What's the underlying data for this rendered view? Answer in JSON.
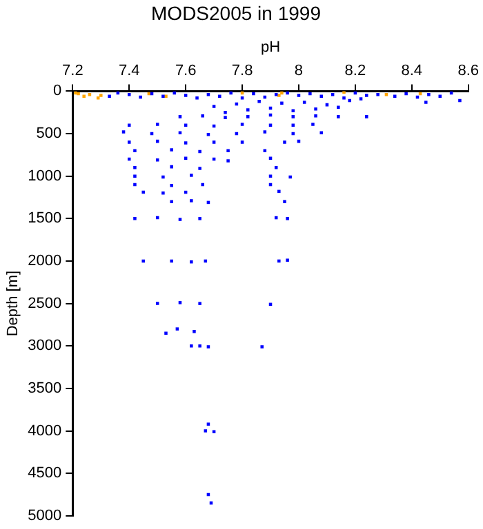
{
  "chart_data": {
    "type": "scatter",
    "title": "MODS2005 in 1999",
    "xlabel": "pH",
    "ylabel": "Depth [m]",
    "xlim": [
      7.2,
      8.6
    ],
    "xticks": [
      7.2,
      7.4,
      7.6,
      7.8,
      8,
      8.2,
      8.4,
      8.6
    ],
    "ylim": [
      5000,
      0
    ],
    "yticks": [
      0,
      500,
      1000,
      1500,
      2000,
      2500,
      3000,
      3500,
      4000,
      4500,
      5000
    ],
    "grid": false,
    "legend": false,
    "marker": "square",
    "series": [
      {
        "color": "#0000ff",
        "x": [
          7.33,
          7.36,
          7.4,
          7.44,
          7.48,
          7.52,
          7.56,
          7.6,
          7.64,
          7.68,
          7.72,
          7.76,
          7.8,
          7.84,
          7.88,
          7.92,
          7.96,
          8,
          8.04,
          8.08,
          8.12,
          8.16,
          8.2,
          8.24,
          8.28,
          8.34,
          8.38,
          8.42,
          8.46,
          8.5,
          8.54,
          8.57,
          7.7,
          7.78,
          7.86,
          7.94,
          8.02,
          8.1,
          8.18,
          8.22,
          7.74,
          7.82,
          7.9,
          7.98,
          8.06,
          8.14,
          8.45,
          7.58,
          7.66,
          7.74,
          7.82,
          7.9,
          7.98,
          8.06,
          8.14,
          8.24,
          7.4,
          7.5,
          7.6,
          7.7,
          7.8,
          7.9,
          7.98,
          8.05,
          7.38,
          7.48,
          7.58,
          7.68,
          7.78,
          7.88,
          7.98,
          8.08,
          7.4,
          7.5,
          7.6,
          7.7,
          7.8,
          7.95,
          8,
          7.42,
          7.55,
          7.65,
          7.75,
          7.88,
          7.4,
          7.5,
          7.6,
          7.7,
          7.75,
          7.9,
          7.42,
          7.55,
          7.65,
          7.92,
          7.42,
          7.52,
          7.62,
          7.9,
          7.97,
          7.42,
          7.55,
          7.66,
          7.9,
          7.45,
          7.52,
          7.6,
          7.93,
          7.55,
          7.62,
          7.68,
          7.95,
          7.42,
          7.5,
          7.58,
          7.65,
          7.92,
          7.96,
          7.45,
          7.55,
          7.62,
          7.67,
          7.93,
          7.96,
          7.5,
          7.58,
          7.65,
          7.9,
          7.53,
          7.57,
          7.63,
          7.62,
          7.65,
          7.68,
          7.87,
          7.68,
          7.67,
          7.7,
          7.68,
          7.69
        ],
        "values": [
          60,
          20,
          40,
          70,
          30,
          60,
          20,
          50,
          80,
          40,
          60,
          20,
          80,
          30,
          70,
          40,
          20,
          50,
          30,
          60,
          40,
          80,
          20,
          50,
          40,
          60,
          30,
          70,
          40,
          60,
          20,
          110,
          180,
          150,
          120,
          140,
          130,
          160,
          110,
          90,
          250,
          220,
          200,
          230,
          210,
          190,
          130,
          300,
          290,
          310,
          300,
          280,
          300,
          290,
          300,
          300,
          400,
          390,
          400,
          410,
          390,
          400,
          400,
          390,
          480,
          500,
          490,
          510,
          500,
          480,
          500,
          490,
          600,
          590,
          610,
          600,
          600,
          600,
          590,
          700,
          690,
          710,
          700,
          700,
          800,
          810,
          790,
          800,
          820,
          790,
          900,
          890,
          910,
          900,
          1000,
          1010,
          990,
          1000,
          1010,
          1100,
          1110,
          1100,
          1100,
          1190,
          1200,
          1190,
          1180,
          1300,
          1290,
          1310,
          1300,
          1500,
          1490,
          1510,
          1500,
          1490,
          1500,
          2000,
          2000,
          2010,
          2000,
          2000,
          1990,
          2500,
          2490,
          2500,
          2510,
          2850,
          2800,
          2830,
          3000,
          3000,
          3010,
          3010,
          3920,
          4000,
          4010,
          4750,
          4850
        ]
      },
      {
        "color": "#ffa500",
        "x": [
          7.21,
          7.22,
          7.24,
          7.26,
          7.29,
          7.3,
          7.47,
          7.53,
          7.8,
          7.93,
          7.94,
          8.16,
          8.31,
          8.43
        ],
        "values": [
          20,
          30,
          60,
          40,
          80,
          50,
          30,
          60,
          20,
          50,
          20,
          10,
          40,
          30
        ]
      }
    ]
  }
}
